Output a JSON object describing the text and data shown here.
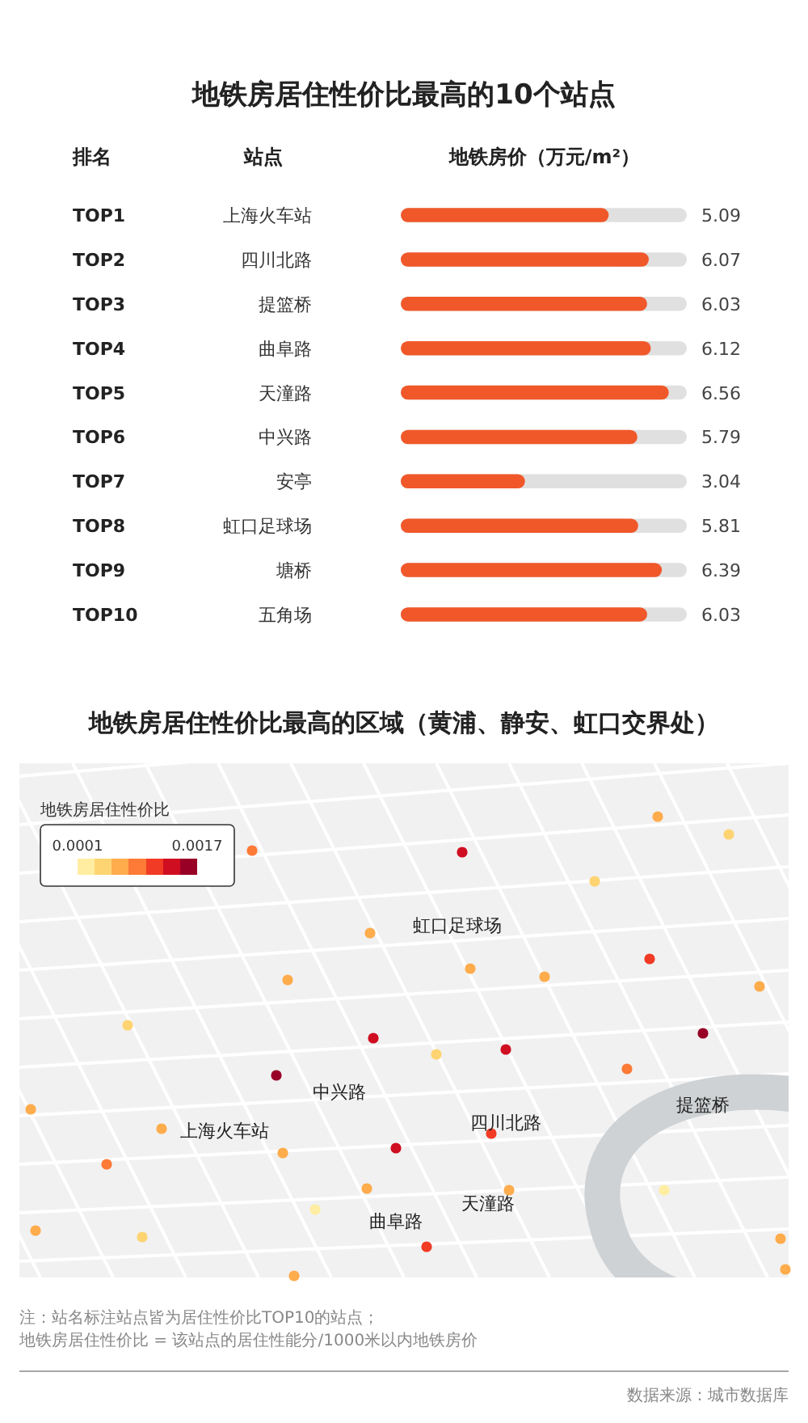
{
  "chart_data": [
    {
      "type": "bar",
      "orientation": "horizontal",
      "title": "地铁房居住性价比最高的10个站点",
      "xlabel": "地铁房价（万元/m²）",
      "categories": [
        "上海火车站",
        "四川北路",
        "提篮桥",
        "曲阜路",
        "天潼路",
        "中兴路",
        "安亭",
        "虹口足球场",
        "塘桥",
        "五角场"
      ],
      "values": [
        5.09,
        6.07,
        6.03,
        6.12,
        6.56,
        5.79,
        3.04,
        5.81,
        6.39,
        6.03
      ],
      "color": "#f0582a",
      "xlim": [
        0,
        7
      ],
      "data_labels": true,
      "tick_labels": "y",
      "annotations": [
        "排名",
        "站点",
        "TOP1",
        "TOP2",
        "TOP3",
        "TOP4",
        "TOP5",
        "TOP6",
        "TOP7",
        "TOP8",
        "TOP9",
        "TOP10"
      ]
    },
    {
      "type": "other",
      "title": "地铁房居住性价比最高的区域（黄浦、静安、虹口交界处）",
      "clabel": "地铁房居住性价比",
      "annotations": [
        "虹口足球场",
        "中兴路",
        "上海火车站",
        "四川北路",
        "提篮桥",
        "天潼路",
        "曲阜路",
        "0.0001",
        "0.0017",
        "注：站名标注站点皆为居住性价比TOP10的站点；",
        "地铁房居住性价比 = 该站点的居住性能分/1000米以内地铁房价",
        "数据来源：城市数据库"
      ]
    }
  ]
}
